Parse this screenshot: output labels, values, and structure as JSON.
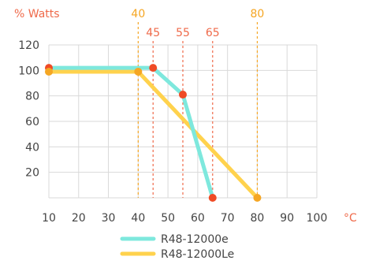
{
  "chart_data": {
    "type": "line",
    "ylabel": "% Watts",
    "xunit": "°C",
    "xlim": [
      10,
      100
    ],
    "ylim": [
      0,
      120
    ],
    "xticks": [
      10,
      20,
      30,
      40,
      50,
      60,
      70,
      80,
      90,
      100
    ],
    "yticks": [
      20,
      40,
      60,
      80,
      100,
      120
    ],
    "grid": true,
    "legend_position": "bottom-center",
    "annotations": [
      {
        "x": 40,
        "label": "40",
        "color": "#f5a623",
        "row": "top"
      },
      {
        "x": 45,
        "label": "45",
        "color": "#ef6a4a",
        "row": "second"
      },
      {
        "x": 55,
        "label": "55",
        "color": "#ef6a4a",
        "row": "second"
      },
      {
        "x": 65,
        "label": "65",
        "color": "#ef6a4a",
        "row": "second"
      },
      {
        "x": 80,
        "label": "80",
        "color": "#f5a623",
        "row": "top"
      }
    ],
    "series": [
      {
        "name": "R48-12000e",
        "color": "#7ee8dd",
        "x": [
          10,
          45,
          55,
          65
        ],
        "y": [
          102,
          102,
          81,
          0
        ],
        "marker_color": "#ef4b25"
      },
      {
        "name": "R48-12000Le",
        "color": "#ffd24d",
        "x": [
          10,
          40,
          80
        ],
        "y": [
          99,
          99,
          0
        ],
        "marker_color": "#f5a623"
      }
    ],
    "colors": {
      "axis_text": "#444444",
      "accent": "#ef6a4a",
      "grid": "#d9d9d9"
    }
  }
}
